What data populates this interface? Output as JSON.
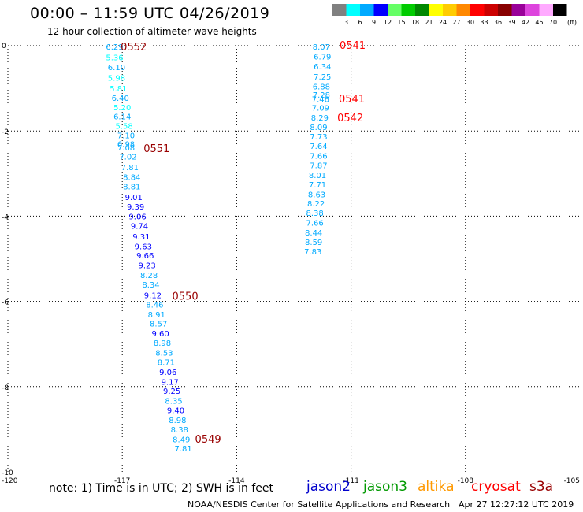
{
  "header": {
    "title": "00:00 – 11:59 UTC 04/26/2019",
    "subtitle": "12 hour collection of altimeter wave heights"
  },
  "footer": {
    "note": "note: 1) Time is in UTC; 2) SWH is in feet",
    "credit": "NOAA/NESDIS Center for Satellite Applications and Research",
    "generated": "Apr 27 12:27:12 UTC 2019"
  },
  "satellites": [
    {
      "name": "jason2",
      "color": "#0000cc"
    },
    {
      "name": "jason3",
      "color": "#009900"
    },
    {
      "name": "altika",
      "color": "#ff9900"
    },
    {
      "name": "cryosat",
      "color": "#ff0000"
    },
    {
      "name": "s3a",
      "color": "#990000"
    }
  ],
  "chart_data": {
    "type": "scatter",
    "title": "00:00 – 11:59 UTC 04/26/2019",
    "subtitle": "12 hour collection of altimeter wave heights",
    "xlim": [
      -120,
      -105
    ],
    "ylim": [
      -10,
      0
    ],
    "x_ticks": [
      "-120",
      "-117",
      "-114",
      "-111",
      "-108",
      "-105"
    ],
    "y_ticks": [
      "0",
      "-2",
      "-4",
      "-6",
      "-8",
      "-10"
    ],
    "grid": true,
    "legend": {
      "placement": "top-right",
      "unit": "(ft)",
      "bins": [
        {
          "label": "3",
          "color": "#808080"
        },
        {
          "label": "6",
          "color": "#00ffff"
        },
        {
          "label": "9",
          "color": "#00aaff"
        },
        {
          "label": "12",
          "color": "#0000ff"
        },
        {
          "label": "15",
          "color": "#66ff66"
        },
        {
          "label": "18",
          "color": "#00cc00"
        },
        {
          "label": "21",
          "color": "#008800"
        },
        {
          "label": "24",
          "color": "#ffff00"
        },
        {
          "label": "27",
          "color": "#ffcc00"
        },
        {
          "label": "30",
          "color": "#ff8800"
        },
        {
          "label": "33",
          "color": "#ff0000"
        },
        {
          "label": "36",
          "color": "#cc0000"
        },
        {
          "label": "39",
          "color": "#880000"
        },
        {
          "label": "42",
          "color": "#990099"
        },
        {
          "label": "45",
          "color": "#dd44dd"
        },
        {
          "label": "70",
          "color": "#ffaaff"
        },
        {
          "label": "",
          "color": "#000000"
        }
      ]
    },
    "series": [
      {
        "satellite": "s3a",
        "points": [
          {
            "x": -117.2,
            "y": -0.02,
            "v": "6.29"
          },
          {
            "x": -117.2,
            "y": -0.27,
            "v": "5.36"
          },
          {
            "x": -117.15,
            "y": -0.5,
            "v": "6.10"
          },
          {
            "x": -117.15,
            "y": -0.75,
            "v": "5.98"
          },
          {
            "x": -117.1,
            "y": -1.0,
            "v": "5.81"
          },
          {
            "x": -117.05,
            "y": -1.22,
            "v": "6.40"
          },
          {
            "x": -117.0,
            "y": -1.44,
            "v": "5.20"
          },
          {
            "x": -117.0,
            "y": -1.65,
            "v": "6.14"
          },
          {
            "x": -116.95,
            "y": -1.88,
            "v": "5.58"
          },
          {
            "x": -116.9,
            "y": -2.1,
            "v": "7.10"
          },
          {
            "x": -116.9,
            "y": -2.3,
            "v": "6.98"
          },
          {
            "x": -116.9,
            "y": -2.38,
            "v": "7.08"
          },
          {
            "x": -116.85,
            "y": -2.6,
            "v": "7.02"
          },
          {
            "x": -116.8,
            "y": -2.85,
            "v": "7.81"
          },
          {
            "x": -116.75,
            "y": -3.08,
            "v": "8.84"
          },
          {
            "x": -116.75,
            "y": -3.3,
            "v": "8.81"
          },
          {
            "x": -116.7,
            "y": -3.55,
            "v": "9.01"
          },
          {
            "x": -116.65,
            "y": -3.77,
            "v": "9.39"
          },
          {
            "x": -116.6,
            "y": -4.0,
            "v": "9.06"
          },
          {
            "x": -116.55,
            "y": -4.22,
            "v": "9.74"
          },
          {
            "x": -116.5,
            "y": -4.47,
            "v": "9.31"
          },
          {
            "x": -116.45,
            "y": -4.7,
            "v": "9.63"
          },
          {
            "x": -116.4,
            "y": -4.92,
            "v": "9.66"
          },
          {
            "x": -116.35,
            "y": -5.15,
            "v": "9.23"
          },
          {
            "x": -116.3,
            "y": -5.38,
            "v": "8.28"
          },
          {
            "x": -116.25,
            "y": -5.6,
            "v": "8.34"
          },
          {
            "x": -116.2,
            "y": -5.85,
            "v": "9.12"
          },
          {
            "x": -116.15,
            "y": -6.07,
            "v": "8.46"
          },
          {
            "x": -116.1,
            "y": -6.3,
            "v": "8.91"
          },
          {
            "x": -116.05,
            "y": -6.52,
            "v": "8.57"
          },
          {
            "x": -116.0,
            "y": -6.75,
            "v": "9.60"
          },
          {
            "x": -115.95,
            "y": -6.97,
            "v": "8.98"
          },
          {
            "x": -115.9,
            "y": -7.2,
            "v": "8.53"
          },
          {
            "x": -115.85,
            "y": -7.42,
            "v": "8.71"
          },
          {
            "x": -115.8,
            "y": -7.65,
            "v": "9.06"
          },
          {
            "x": -115.75,
            "y": -7.88,
            "v": "9.17"
          },
          {
            "x": -115.7,
            "y": -8.1,
            "v": "9.25"
          },
          {
            "x": -115.65,
            "y": -8.33,
            "v": "8.35"
          },
          {
            "x": -115.6,
            "y": -8.55,
            "v": "9.40"
          },
          {
            "x": -115.55,
            "y": -8.78,
            "v": "8.98"
          },
          {
            "x": -115.5,
            "y": -9.0,
            "v": "8.38"
          },
          {
            "x": -115.45,
            "y": -9.23,
            "v": "8.49"
          },
          {
            "x": -115.4,
            "y": -9.45,
            "v": "7.81"
          }
        ]
      },
      {
        "satellite": "cryosat",
        "points": [
          {
            "x": -111.78,
            "y": -0.02,
            "v": "8.07"
          },
          {
            "x": -111.75,
            "y": -0.25,
            "v": "6.79"
          },
          {
            "x": -111.75,
            "y": -0.48,
            "v": "6.34"
          },
          {
            "x": -111.75,
            "y": -0.72,
            "v": "7.25"
          },
          {
            "x": -111.78,
            "y": -0.95,
            "v": "6.88"
          },
          {
            "x": -111.78,
            "y": -1.15,
            "v": "7.28"
          },
          {
            "x": -111.8,
            "y": -1.25,
            "v": "7.46"
          },
          {
            "x": -111.8,
            "y": -1.45,
            "v": "7.09"
          },
          {
            "x": -111.82,
            "y": -1.68,
            "v": "8.29"
          },
          {
            "x": -111.85,
            "y": -1.9,
            "v": "8.09"
          },
          {
            "x": -111.85,
            "y": -2.13,
            "v": "7.73"
          },
          {
            "x": -111.85,
            "y": -2.35,
            "v": "7.64"
          },
          {
            "x": -111.85,
            "y": -2.58,
            "v": "7.66"
          },
          {
            "x": -111.85,
            "y": -2.8,
            "v": "7.87"
          },
          {
            "x": -111.88,
            "y": -3.03,
            "v": "8.01"
          },
          {
            "x": -111.88,
            "y": -3.25,
            "v": "7.71"
          },
          {
            "x": -111.9,
            "y": -3.48,
            "v": "8.63"
          },
          {
            "x": -111.92,
            "y": -3.7,
            "v": "8.22"
          },
          {
            "x": -111.95,
            "y": -3.92,
            "v": "8.38"
          },
          {
            "x": -111.95,
            "y": -4.15,
            "v": "7.66"
          },
          {
            "x": -111.98,
            "y": -4.38,
            "v": "8.44"
          },
          {
            "x": -111.98,
            "y": -4.6,
            "v": "8.59"
          },
          {
            "x": -112.0,
            "y": -4.82,
            "v": "7.83"
          }
        ]
      }
    ],
    "time_labels": [
      {
        "text": "0552",
        "x": -116.7,
        "y": -0.02,
        "color": "#990000"
      },
      {
        "text": "0551",
        "x": -116.1,
        "y": -2.4,
        "color": "#990000"
      },
      {
        "text": "0550",
        "x": -115.35,
        "y": -5.87,
        "color": "#990000"
      },
      {
        "text": "0549",
        "x": -114.75,
        "y": -9.22,
        "color": "#990000"
      },
      {
        "text": "0541",
        "x": -110.96,
        "y": 0.02,
        "color": "#ff0000"
      },
      {
        "text": "0541",
        "x": -110.98,
        "y": -1.24,
        "color": "#ff0000"
      },
      {
        "text": "0542",
        "x": -111.02,
        "y": -1.68,
        "color": "#ff0000"
      }
    ]
  }
}
